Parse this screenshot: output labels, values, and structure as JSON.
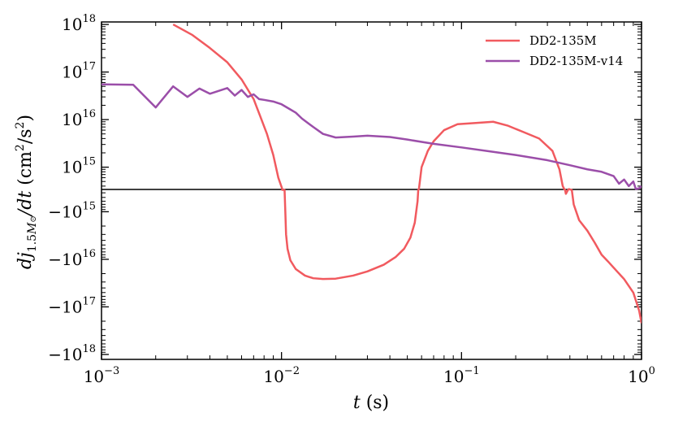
{
  "chart_data": {
    "type": "line",
    "xscale": "log",
    "yscale": "symlog",
    "xlim": [
      0.001,
      1
    ],
    "ylim": [
      -1e+18,
      1e+18
    ],
    "linthresh": 340000000000000.0,
    "xlabel": "t (s)",
    "ylabel": "dj_{1.5M⊙}/dt (cm²/s²)",
    "legend_position": "top-right",
    "x_ticks": [
      {
        "value": 0.001,
        "base": "10",
        "exp": "−3"
      },
      {
        "value": 0.01,
        "base": "10",
        "exp": "−2"
      },
      {
        "value": 0.1,
        "base": "10",
        "exp": "−1"
      },
      {
        "value": 1,
        "base": "10",
        "exp": "0"
      }
    ],
    "y_ticks": [
      {
        "value": 1e+18,
        "base": "10",
        "exp": "18"
      },
      {
        "value": 1e+17,
        "base": "10",
        "exp": "17"
      },
      {
        "value": 1e+16,
        "base": "10",
        "exp": "16"
      },
      {
        "value": 1000000000000000.0,
        "base": "10",
        "exp": "15"
      },
      {
        "value": -1000000000000000.0,
        "base": "−10",
        "exp": "15"
      },
      {
        "value": -1e+16,
        "base": "−10",
        "exp": "16"
      },
      {
        "value": -1e+17,
        "base": "−10",
        "exp": "17"
      },
      {
        "value": -1e+18,
        "base": "−10",
        "exp": "18"
      }
    ],
    "series": [
      {
        "name": "DD2-135M",
        "color": "#f15a5f",
        "points": [
          [
            0.0025,
            1e+18
          ],
          [
            0.0032,
            6e+17
          ],
          [
            0.004,
            3.2e+17
          ],
          [
            0.005,
            1.6e+17
          ],
          [
            0.006,
            7e+16
          ],
          [
            0.007,
            2.7e+16
          ],
          [
            0.0076,
            1.2e+16
          ],
          [
            0.0083,
            5000000000000000.0
          ],
          [
            0.009,
            1800000000000000.0
          ],
          [
            0.0096,
            600000000000000.0
          ],
          [
            0.0101,
            340000000000000.0
          ],
          [
            0.0101,
            -340000000000000.0
          ],
          [
            0.0104,
            -340000000000000.0
          ],
          [
            0.0105,
            -1000000000000000.0
          ],
          [
            0.0106,
            -3000000000000000.0
          ],
          [
            0.0108,
            -6000000000000000.0
          ],
          [
            0.0112,
            -1.05e+16
          ],
          [
            0.012,
            -1.6e+16
          ],
          [
            0.0135,
            -2.2e+16
          ],
          [
            0.015,
            -2.5e+16
          ],
          [
            0.017,
            -2.6e+16
          ],
          [
            0.02,
            -2.55e+16
          ],
          [
            0.025,
            -2.2e+16
          ],
          [
            0.03,
            -1.8e+16
          ],
          [
            0.037,
            -1.3e+16
          ],
          [
            0.043,
            -9000000000000000.0
          ],
          [
            0.048,
            -6000000000000000.0
          ],
          [
            0.052,
            -3500000000000000.0
          ],
          [
            0.055,
            -1700000000000000.0
          ],
          [
            0.057,
            -600000000000000.0
          ],
          [
            0.0575,
            -340000000000000.0
          ],
          [
            0.058,
            340000000000000.0
          ],
          [
            0.06,
            1000000000000000.0
          ],
          [
            0.065,
            2200000000000000.0
          ],
          [
            0.07,
            3500000000000000.0
          ],
          [
            0.08,
            6000000000000000.0
          ],
          [
            0.095,
            8000000000000000.0
          ],
          [
            0.12,
            8500000000000000.0
          ],
          [
            0.15,
            9000000000000000.0
          ],
          [
            0.18,
            7500000000000000.0
          ],
          [
            0.22,
            5500000000000000.0
          ],
          [
            0.27,
            4000000000000000.0
          ],
          [
            0.32,
            2200000000000000.0
          ],
          [
            0.35,
            900000000000000.0
          ],
          [
            0.365,
            400000000000000.0
          ],
          [
            0.372,
            340000000000000.0
          ],
          [
            0.376,
            -340000000000000.0
          ],
          [
            0.38,
            -420000000000000.0
          ],
          [
            0.39,
            -350000000000000.0
          ],
          [
            0.395,
            340000000000000.0
          ],
          [
            0.41,
            -350000000000000.0
          ],
          [
            0.42,
            -700000000000000.0
          ],
          [
            0.45,
            -1500000000000000.0
          ],
          [
            0.5,
            -2500000000000000.0
          ],
          [
            0.55,
            -4500000000000000.0
          ],
          [
            0.6,
            -8000000000000000.0
          ],
          [
            0.65,
            -1.1e+16
          ],
          [
            0.7,
            -1.5e+16
          ],
          [
            0.8,
            -2.6e+16
          ],
          [
            0.9,
            -5e+16
          ],
          [
            0.97,
            -1.2e+17
          ],
          [
            1.0,
            -2.2e+17
          ]
        ]
      },
      {
        "name": "DD2-135M-v14",
        "color": "#9b4ea9",
        "points": [
          [
            0.001,
            5.5e+16
          ],
          [
            0.0015,
            5.4e+16
          ],
          [
            0.002,
            1.8e+16
          ],
          [
            0.0025,
            5e+16
          ],
          [
            0.003,
            3e+16
          ],
          [
            0.0035,
            4.5e+16
          ],
          [
            0.004,
            3.5e+16
          ],
          [
            0.005,
            4.6e+16
          ],
          [
            0.0055,
            3.2e+16
          ],
          [
            0.006,
            4.2e+16
          ],
          [
            0.0065,
            3e+16
          ],
          [
            0.007,
            3.4e+16
          ],
          [
            0.0075,
            2.7e+16
          ],
          [
            0.008,
            2.6e+16
          ],
          [
            0.009,
            2.4e+16
          ],
          [
            0.01,
            2.1e+16
          ],
          [
            0.011,
            1.7e+16
          ],
          [
            0.012,
            1.4e+16
          ],
          [
            0.013,
            1.05e+16
          ],
          [
            0.015,
            7000000000000000.0
          ],
          [
            0.017,
            5000000000000000.0
          ],
          [
            0.02,
            4200000000000000.0
          ],
          [
            0.025,
            4400000000000000.0
          ],
          [
            0.03,
            4600000000000000.0
          ],
          [
            0.04,
            4300000000000000.0
          ],
          [
            0.05,
            3800000000000000.0
          ],
          [
            0.07,
            3100000000000000.0
          ],
          [
            0.1,
            2600000000000000.0
          ],
          [
            0.15,
            2100000000000000.0
          ],
          [
            0.2,
            1800000000000000.0
          ],
          [
            0.3,
            1400000000000000.0
          ],
          [
            0.4,
            1100000000000000.0
          ],
          [
            0.5,
            900000000000000.0
          ],
          [
            0.6,
            800000000000000.0
          ],
          [
            0.7,
            650000000000000.0
          ],
          [
            0.75,
            450000000000000.0
          ],
          [
            0.8,
            550000000000000.0
          ],
          [
            0.85,
            400000000000000.0
          ],
          [
            0.9,
            500000000000000.0
          ],
          [
            0.93,
            340000000000000.0
          ],
          [
            0.97,
            360000000000000.0
          ],
          [
            1.0,
            400000000000000.0
          ]
        ]
      }
    ]
  }
}
